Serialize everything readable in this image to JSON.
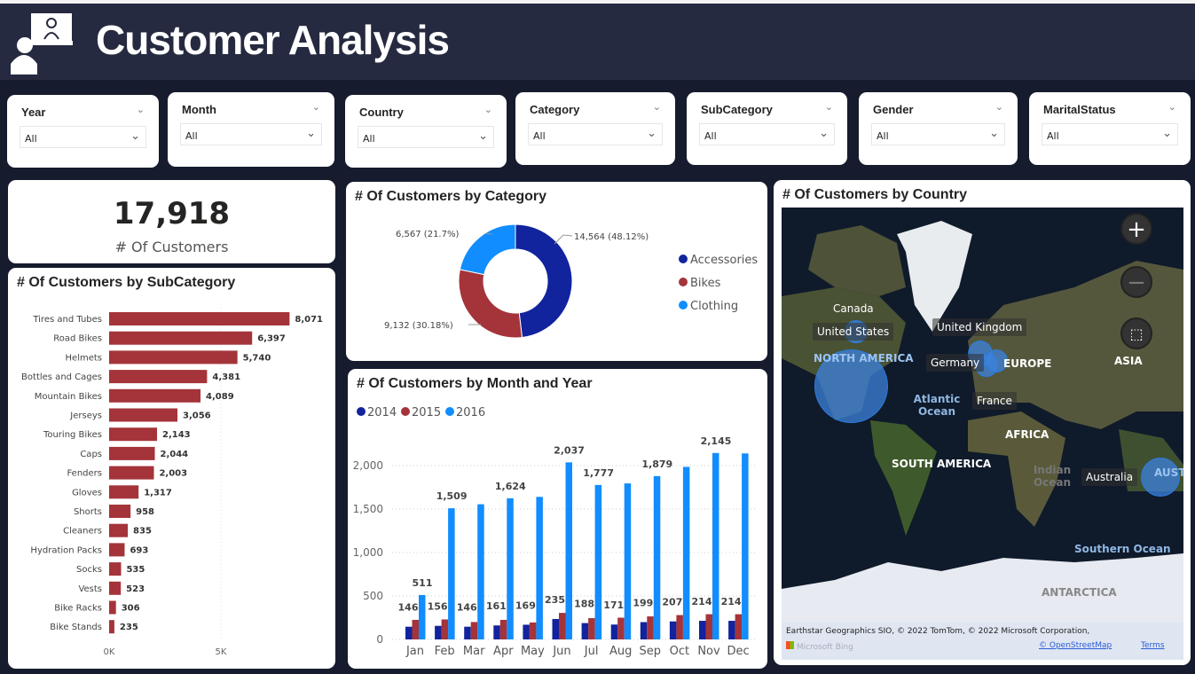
{
  "header": {
    "title": "Customer Analysis"
  },
  "slicers": [
    {
      "label": "Year",
      "value": "All"
    },
    {
      "label": "Month",
      "value": "All"
    },
    {
      "label": "Country",
      "value": "All"
    },
    {
      "label": "Category",
      "value": "All"
    },
    {
      "label": "SubCategory",
      "value": "All"
    },
    {
      "label": "Gender",
      "value": "All"
    },
    {
      "label": "MaritalStatus",
      "value": "All"
    }
  ],
  "kpi": {
    "value": "17,918",
    "label": "# Of Customers"
  },
  "colors": {
    "accessories": "#12239e",
    "bikes": "#a4343a",
    "clothing": "#118dff",
    "y2014": "#12239e",
    "y2015": "#a4343a",
    "y2016": "#118dff"
  },
  "chart_data": [
    {
      "type": "bar",
      "orientation": "horizontal",
      "title": "# Of Customers by SubCategory",
      "categories": [
        "Tires and Tubes",
        "Road Bikes",
        "Helmets",
        "Bottles and Cages",
        "Mountain Bikes",
        "Jerseys",
        "Touring Bikes",
        "Caps",
        "Fenders",
        "Gloves",
        "Shorts",
        "Cleaners",
        "Hydration Packs",
        "Socks",
        "Vests",
        "Bike Racks",
        "Bike Stands"
      ],
      "values": [
        8071,
        6397,
        5740,
        4381,
        4089,
        3056,
        2143,
        2044,
        2003,
        1317,
        958,
        835,
        693,
        535,
        523,
        306,
        235
      ],
      "labels": [
        "8,071",
        "6,397",
        "5,740",
        "4,381",
        "4,089",
        "3,056",
        "2,143",
        "2,044",
        "2,003",
        "1,317",
        "958",
        "835",
        "693",
        "535",
        "523",
        "306",
        "235"
      ],
      "xticks": [
        "0K",
        "5K"
      ],
      "xlim": [
        0,
        9000
      ]
    },
    {
      "type": "pie",
      "donut": true,
      "title": "# Of Customers by Category",
      "categories": [
        "Accessories",
        "Bikes",
        "Clothing"
      ],
      "values": [
        14564,
        9132,
        6567
      ],
      "labels": [
        "14,564 (48.12%)",
        "9,132 (30.18%)",
        "6,567 (21.7%)"
      ],
      "legend": "right"
    },
    {
      "type": "bar",
      "title": "# Of Customers by Month and Year",
      "categories": [
        "Jan",
        "Feb",
        "Mar",
        "Apr",
        "May",
        "Jun",
        "Jul",
        "Aug",
        "Sep",
        "Oct",
        "Nov",
        "Dec"
      ],
      "series": [
        {
          "name": "2014",
          "values": [
            146,
            156,
            146,
            161,
            169,
            235,
            188,
            171,
            199,
            207,
            214,
            214
          ],
          "labels": [
            "146",
            "156",
            "146",
            "161",
            "169",
            "235",
            "188",
            "171",
            "199",
            "207",
            "214",
            "214"
          ]
        },
        {
          "name": "2015",
          "values": [
            225,
            230,
            200,
            225,
            195,
            305,
            245,
            250,
            265,
            280,
            290,
            290
          ]
        },
        {
          "name": "2016",
          "values": [
            511,
            1509,
            1555,
            1624,
            1640,
            2037,
            1777,
            1795,
            1879,
            1985,
            2145,
            2140
          ],
          "labels": [
            "511",
            "1,509",
            "",
            "1,624",
            "",
            "2,037",
            "1,777",
            "",
            "1,879",
            "",
            "2,145",
            ""
          ]
        }
      ],
      "yticks": [
        "0",
        "500",
        "1,000",
        "1,500",
        "2,000"
      ],
      "ylim": [
        0,
        2200
      ],
      "legend": "top-left"
    }
  ],
  "map": {
    "title": "# Of Customers by Country",
    "countries": [
      "Canada",
      "United States",
      "United Kingdom",
      "Germany",
      "France",
      "Australia"
    ],
    "continents": [
      "NORTH AMERICA",
      "EUROPE",
      "ASIA",
      "AFRICA",
      "SOUTH AMERICA",
      "ANTARCTICA",
      "AUST"
    ],
    "oceans": [
      "Atlantic Ocean",
      "Indian Ocean",
      "Southern Ocean"
    ],
    "attribution": "Earthstar Geographics SIO, © 2022 TomTom, © 2022 Microsoft Corporation,",
    "terms": "Terms",
    "osm": "© OpenStreetMap",
    "bing": "Microsoft Bing",
    "zoom_in": "+",
    "zoom_out": "−"
  }
}
